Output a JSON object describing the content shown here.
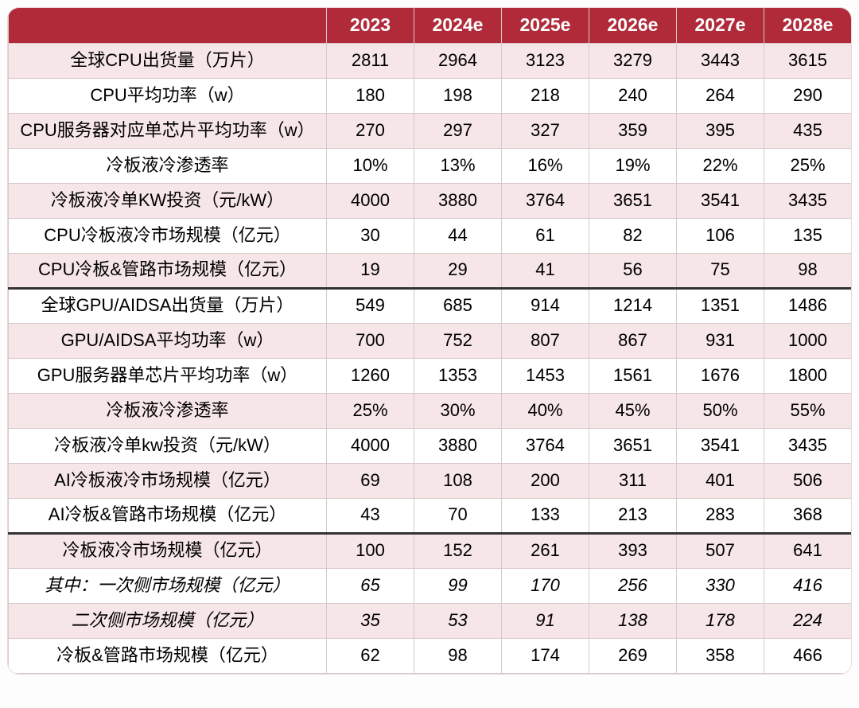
{
  "table": {
    "type": "table",
    "header_bg": "#b02a3a",
    "header_color": "#ffffff",
    "row_odd_bg": "#f7e6e8",
    "row_even_bg": "#ffffff",
    "border_color": "#d9c8ca",
    "section_border_color": "#333333",
    "font_size": 22,
    "header_font_size": 23,
    "first_col_width": 400,
    "data_col_width": 110,
    "columns": [
      "",
      "2023",
      "2024e",
      "2025e",
      "2026e",
      "2027e",
      "2028e"
    ],
    "rows": [
      {
        "label": "全球CPU出货量（万片）",
        "vals": [
          "2811",
          "2964",
          "3123",
          "3279",
          "3443",
          "3615"
        ],
        "section_end": false,
        "italic": false
      },
      {
        "label": "CPU平均功率（w）",
        "vals": [
          "180",
          "198",
          "218",
          "240",
          "264",
          "290"
        ],
        "section_end": false,
        "italic": false
      },
      {
        "label": "CPU服务器对应单芯片平均功率（w）",
        "vals": [
          "270",
          "297",
          "327",
          "359",
          "395",
          "435"
        ],
        "section_end": false,
        "italic": false
      },
      {
        "label": "冷板液冷渗透率",
        "vals": [
          "10%",
          "13%",
          "16%",
          "19%",
          "22%",
          "25%"
        ],
        "section_end": false,
        "italic": false
      },
      {
        "label": "冷板液冷单KW投资（元/kW）",
        "vals": [
          "4000",
          "3880",
          "3764",
          "3651",
          "3541",
          "3435"
        ],
        "section_end": false,
        "italic": false
      },
      {
        "label": "CPU冷板液冷市场规模（亿元）",
        "vals": [
          "30",
          "44",
          "61",
          "82",
          "106",
          "135"
        ],
        "section_end": false,
        "italic": false
      },
      {
        "label": "CPU冷板&管路市场规模（亿元）",
        "vals": [
          "19",
          "29",
          "41",
          "56",
          "75",
          "98"
        ],
        "section_end": true,
        "italic": false
      },
      {
        "label": "全球GPU/AIDSA出货量（万片）",
        "vals": [
          "549",
          "685",
          "914",
          "1214",
          "1351",
          "1486"
        ],
        "section_end": false,
        "italic": false
      },
      {
        "label": "GPU/AIDSA平均功率（w）",
        "vals": [
          "700",
          "752",
          "807",
          "867",
          "931",
          "1000"
        ],
        "section_end": false,
        "italic": false
      },
      {
        "label": "GPU服务器单芯片平均功率（w）",
        "vals": [
          "1260",
          "1353",
          "1453",
          "1561",
          "1676",
          "1800"
        ],
        "section_end": false,
        "italic": false
      },
      {
        "label": "冷板液冷渗透率",
        "vals": [
          "25%",
          "30%",
          "40%",
          "45%",
          "50%",
          "55%"
        ],
        "section_end": false,
        "italic": false
      },
      {
        "label": "冷板液冷单kw投资（元/kW）",
        "vals": [
          "4000",
          "3880",
          "3764",
          "3651",
          "3541",
          "3435"
        ],
        "section_end": false,
        "italic": false
      },
      {
        "label": "AI冷板液冷市场规模（亿元）",
        "vals": [
          "69",
          "108",
          "200",
          "311",
          "401",
          "506"
        ],
        "section_end": false,
        "italic": false
      },
      {
        "label": "AI冷板&管路市场规模（亿元）",
        "vals": [
          "43",
          "70",
          "133",
          "213",
          "283",
          "368"
        ],
        "section_end": true,
        "italic": false
      },
      {
        "label": "冷板液冷市场规模（亿元）",
        "vals": [
          "100",
          "152",
          "261",
          "393",
          "507",
          "641"
        ],
        "section_end": false,
        "italic": false
      },
      {
        "label": "其中：一次侧市场规模（亿元）",
        "vals": [
          "65",
          "99",
          "170",
          "256",
          "330",
          "416"
        ],
        "section_end": false,
        "italic": true
      },
      {
        "label": "二次侧市场规模（亿元）",
        "vals": [
          "35",
          "53",
          "91",
          "138",
          "178",
          "224"
        ],
        "section_end": false,
        "italic": true
      },
      {
        "label": "冷板&管路市场规模（亿元）",
        "vals": [
          "62",
          "98",
          "174",
          "269",
          "358",
          "466"
        ],
        "section_end": false,
        "italic": false
      }
    ]
  }
}
